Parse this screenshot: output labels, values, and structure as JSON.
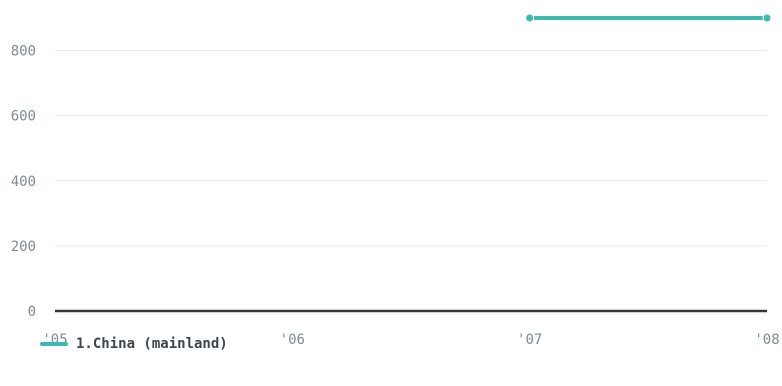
{
  "chart_data": {
    "type": "line",
    "x": [
      "'05",
      "'06",
      "'07",
      "'08"
    ],
    "x_ticks": [
      "'05",
      "'06",
      "'07",
      "'08"
    ],
    "y_ticks": [
      "0",
      "200",
      "400",
      "600",
      "800"
    ],
    "ylim": [
      0,
      900
    ],
    "grid": true,
    "legend_position": "bottom-left",
    "series": [
      {
        "name": "1.China (mainland)",
        "color": "#3eb8b2",
        "points": [
          {
            "x": "'07",
            "y": 900
          },
          {
            "x": "'08",
            "y": 900
          }
        ]
      }
    ]
  }
}
